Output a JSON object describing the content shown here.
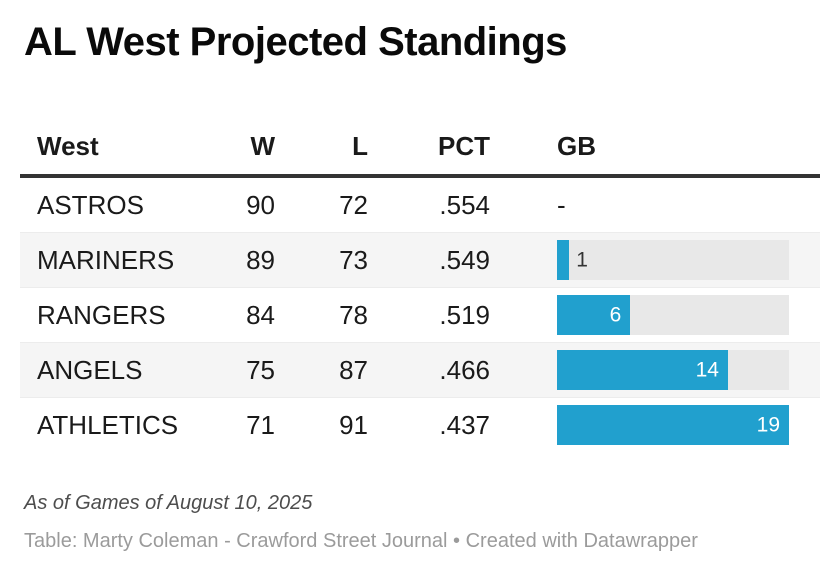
{
  "title": "AL West Projected Standings",
  "colors": {
    "bar_blue": "#21a0ce",
    "bar_track_gray": "#e8e8e8",
    "row_stripe_gray": "#f5f5f5",
    "header_border_dark": "#333333",
    "text_dark": "#1a1a1a",
    "footnote_gray": "#4d4d4d",
    "byline_gray": "#9b9b9b"
  },
  "table": {
    "headers": {
      "team": "West",
      "w": "W",
      "l": "L",
      "pct": "PCT",
      "gb": "GB"
    },
    "gb_axis_max": 19,
    "rows": [
      {
        "team": "ASTROS",
        "w": "90",
        "l": "72",
        "pct": ".554",
        "gb": "-",
        "gb_value": 0
      },
      {
        "team": "MARINERS",
        "w": "89",
        "l": "73",
        "pct": ".549",
        "gb": "1",
        "gb_value": 1
      },
      {
        "team": "RANGERS",
        "w": "84",
        "l": "78",
        "pct": ".519",
        "gb": "6",
        "gb_value": 6
      },
      {
        "team": "ANGELS",
        "w": "75",
        "l": "87",
        "pct": ".466",
        "gb": "14",
        "gb_value": 14
      },
      {
        "team": "ATHLETICS",
        "w": "71",
        "l": "91",
        "pct": ".437",
        "gb": "19",
        "gb_value": 19
      }
    ]
  },
  "footnote": "As of Games of August 10, 2025",
  "byline": "Table: Marty Coleman - Crawford Street Journal • Created with Datawrapper",
  "chart_data": {
    "type": "table",
    "title": "AL West Projected Standings",
    "columns": [
      "West",
      "W",
      "L",
      "PCT",
      "GB"
    ],
    "rows": [
      [
        "ASTROS",
        90,
        72,
        ".554",
        "-"
      ],
      [
        "MARINERS",
        89,
        73,
        ".549",
        1
      ],
      [
        "RANGERS",
        84,
        78,
        ".519",
        6
      ],
      [
        "ANGELS",
        75,
        87,
        ".466",
        14
      ],
      [
        "ATHLETICS",
        71,
        91,
        ".437",
        19
      ]
    ],
    "embedded_bar": {
      "type": "bar",
      "column": "GB",
      "values": [
        0,
        1,
        6,
        14,
        19
      ],
      "axis_max": 19,
      "bar_color": "#21a0ce",
      "track_color": "#e8e8e8",
      "label_position": "inside-right (outside when bar too short)"
    },
    "footnote": "As of Games of August 10, 2025",
    "source": "Table: Marty Coleman - Crawford Street Journal • Created with Datawrapper"
  }
}
